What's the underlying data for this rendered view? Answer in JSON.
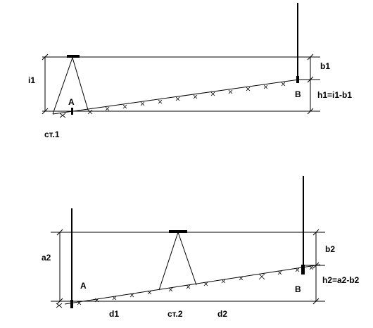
{
  "top": {
    "i_label": "i1",
    "a_label": "A",
    "station_label": "ст.1",
    "b_label": "b1",
    "b_point_label": "B",
    "formula": "h1=i1-b1"
  },
  "bottom": {
    "a2_label": "a2",
    "a_label": "A",
    "d1_label": "d1",
    "station_label": "ст.2",
    "d2_label": "d2",
    "b2_label": "b2",
    "b_point_label": "B",
    "formula": "h2=a2-b2"
  },
  "colors": {
    "line": "#000000",
    "background": "#ffffff"
  }
}
